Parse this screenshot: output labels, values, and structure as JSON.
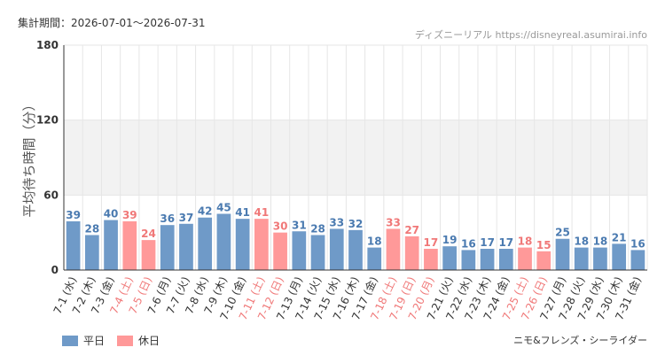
{
  "header": {
    "period": "集計期間：2026-07-01～2026-07-31",
    "source": "ディズニーリアル https://disneyreal.asumirai.info"
  },
  "footer": {
    "ride_name": "ニモ&フレンズ・シーライダー"
  },
  "colors": {
    "weekday": "#6f9ac8",
    "holiday": "#ff9999",
    "weekday_text": "#4a7ab0",
    "holiday_text": "#f07878",
    "band": "#f2f2f2",
    "grid": "#e6e6e6",
    "axis": "#333333"
  },
  "chart_data": {
    "type": "bar",
    "ylabel": "平均待ち時間（分）",
    "ylim": [
      0,
      180
    ],
    "yticks": [
      0,
      60,
      120,
      180
    ],
    "shaded_band": [
      60,
      120
    ],
    "legend": [
      {
        "name": "平日",
        "color": "#6f9ac8"
      },
      {
        "name": "休日",
        "color": "#ff9999"
      }
    ],
    "categories": [
      "7-1 (水)",
      "7-2 (木)",
      "7-3 (金)",
      "7-4 (土)",
      "7-5 (日)",
      "7-6 (月)",
      "7-7 (火)",
      "7-8 (水)",
      "7-9 (木)",
      "7-10 (金)",
      "7-11 (土)",
      "7-12 (日)",
      "7-13 (月)",
      "7-14 (火)",
      "7-15 (水)",
      "7-16 (木)",
      "7-17 (金)",
      "7-18 (土)",
      "7-19 (日)",
      "7-20 (月)",
      "7-21 (火)",
      "7-22 (水)",
      "7-23 (木)",
      "7-24 (金)",
      "7-25 (土)",
      "7-26 (日)",
      "7-27 (月)",
      "7-28 (火)",
      "7-29 (水)",
      "7-30 (木)",
      "7-31 (金)"
    ],
    "values": [
      39,
      28,
      40,
      39,
      24,
      36,
      37,
      42,
      45,
      41,
      41,
      30,
      31,
      28,
      33,
      32,
      18,
      33,
      27,
      17,
      19,
      16,
      17,
      17,
      18,
      15,
      25,
      18,
      18,
      21,
      16
    ],
    "holiday": [
      false,
      false,
      false,
      true,
      true,
      false,
      false,
      false,
      false,
      false,
      true,
      true,
      false,
      false,
      false,
      false,
      false,
      true,
      true,
      true,
      false,
      false,
      false,
      false,
      true,
      true,
      false,
      false,
      false,
      false,
      false
    ]
  }
}
